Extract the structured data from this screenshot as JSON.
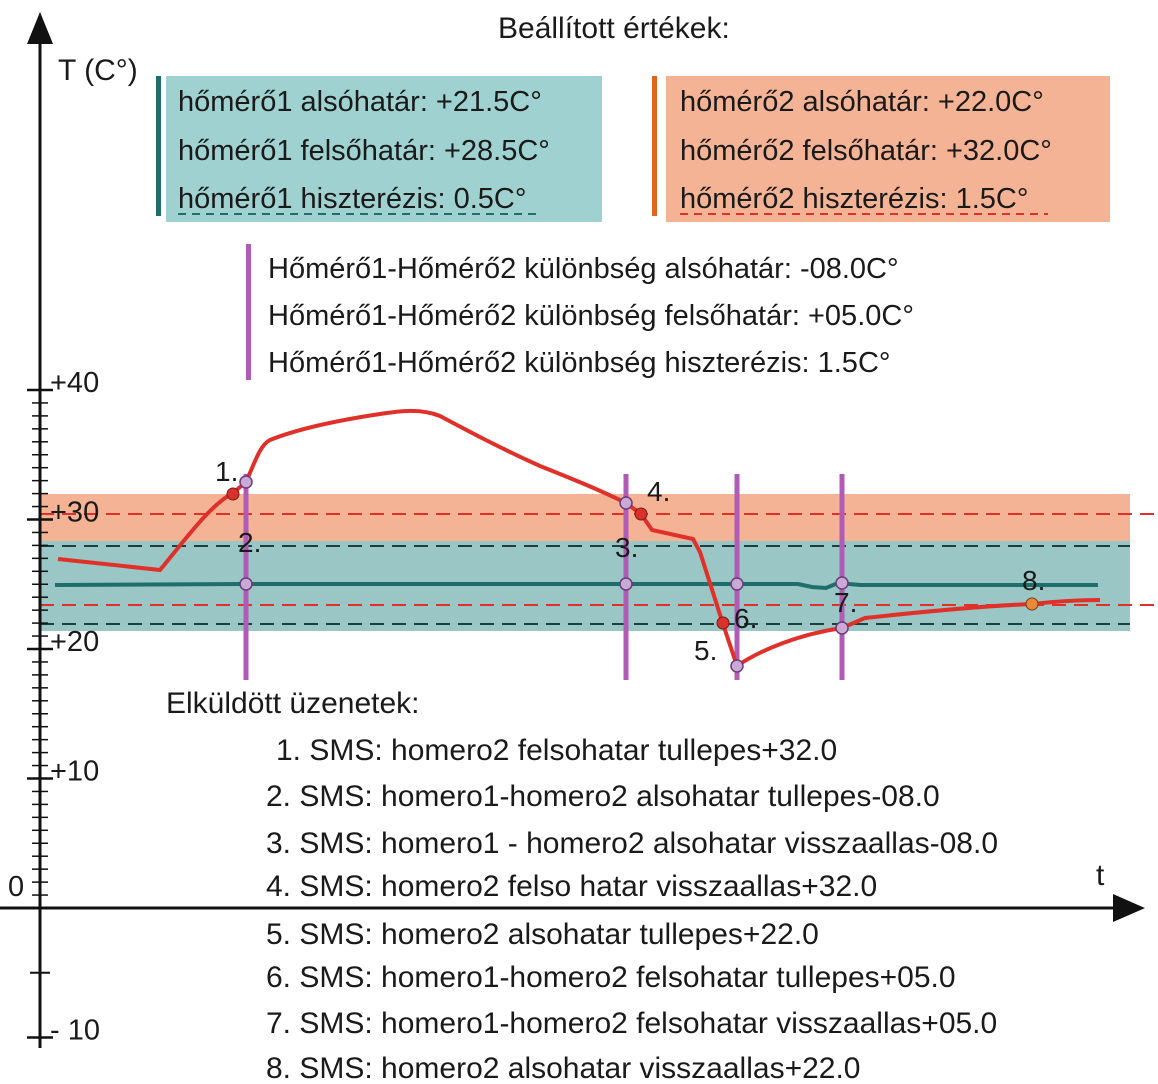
{
  "title": "Beállított értékek:",
  "axes": {
    "y_label": "T (C°)",
    "x_label": "t",
    "y_ticks": [
      {
        "value": 40,
        "label": "+40"
      },
      {
        "value": 30,
        "label": "+30"
      },
      {
        "value": 20,
        "label": "+20"
      },
      {
        "value": 10,
        "label": "+10"
      },
      {
        "value": 0,
        "label": "0"
      },
      {
        "value": -10,
        "label": "- 10"
      }
    ]
  },
  "sensor1_box": {
    "color": "#9fd1d1",
    "bar_color": "#1f6e6b",
    "lines": [
      "hőmérő1  alsóhatár: +21.5C°",
      "hőmérő1 felsőhatár: +28.5C°",
      "hőmérő1 hiszterézis: 0.5C°"
    ]
  },
  "sensor2_box": {
    "color": "#f5b396",
    "bar_color": "#e0661e",
    "lines": [
      "hőmérő2  alsóhatár: +22.0C°",
      "hőmérő2 felsőhatár: +32.0C°",
      "hőmérő2 hiszterézis: 1.5C°"
    ]
  },
  "diff_box": {
    "bar_color": "#b05bb6",
    "lines": [
      "Hőmérő1-Hőmérő2 különbség alsóhatár: -08.0C°",
      "Hőmérő1-Hőmérő2 különbség felsőhatár: +05.0C°",
      "Hőmérő1-Hőmérő2 különbség hiszterézis: 1.5C°"
    ]
  },
  "markers": [
    "1.",
    "2.",
    "3.",
    "4.",
    "5.",
    "6.",
    "7.",
    "8."
  ],
  "messages_title": "Elküldött üzenetek:",
  "messages": [
    "1. SMS: homero2 felsohatar tullepes+32.0",
    "2. SMS: homero1-homero2 alsohatar tullepes-08.0",
    "3. SMS: homero1 - homero2 alsohatar visszaallas-08.0",
    "4. SMS: homero2 felso hatar visszaallas+32.0",
    "5. SMS: homero2 alsohatar tullepes+22.0",
    "6. SMS: homero1-homero2 felsohatar tullepes+05.0",
    "7. SMS: homero1-homero2 felsohatar visszaallas+05.0",
    "8. SMS: homero2 alsohatar visszaallas+22.0"
  ],
  "colors": {
    "sensor1_line": "#1f6e6b",
    "sensor2_line": "#e0302a",
    "event_lines": "#b05bb6",
    "band1": "#9fd1d1",
    "band2": "#f5b396"
  }
}
